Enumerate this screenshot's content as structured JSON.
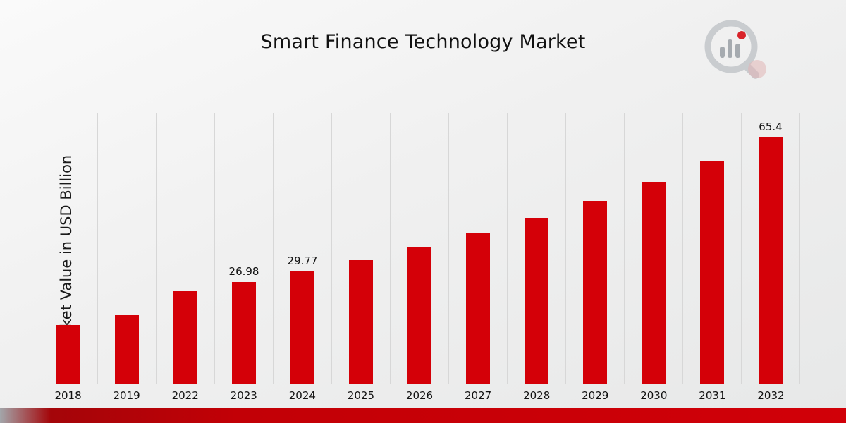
{
  "page": {
    "title": "Smart Finance Technology Market"
  },
  "chart_data": {
    "type": "bar",
    "title": "Smart Finance Technology Market",
    "xlabel": "",
    "ylabel": "Market Value in USD Billion",
    "categories": [
      "2018",
      "2019",
      "2022",
      "2023",
      "2024",
      "2025",
      "2026",
      "2027",
      "2028",
      "2029",
      "2030",
      "2031",
      "2032"
    ],
    "values": [
      15.6,
      18.2,
      24.5,
      26.98,
      29.77,
      32.8,
      36.2,
      39.9,
      44.0,
      48.6,
      53.6,
      59.1,
      65.4
    ],
    "data_labels": [
      "",
      "",
      "",
      "26.98",
      "29.77",
      "",
      "",
      "",
      "",
      "",
      "",
      "",
      "65.4"
    ],
    "ylim": [
      0,
      72
    ],
    "bar_color": "#d40008",
    "grid": "vertical-only",
    "legend": "none"
  },
  "colors": {
    "bar_red": "#d40008",
    "footer_stripe_red": "#c20006",
    "gridline_gray": "#d7d7d7",
    "background_gray": "#efefef",
    "text_dark": "#111111"
  }
}
